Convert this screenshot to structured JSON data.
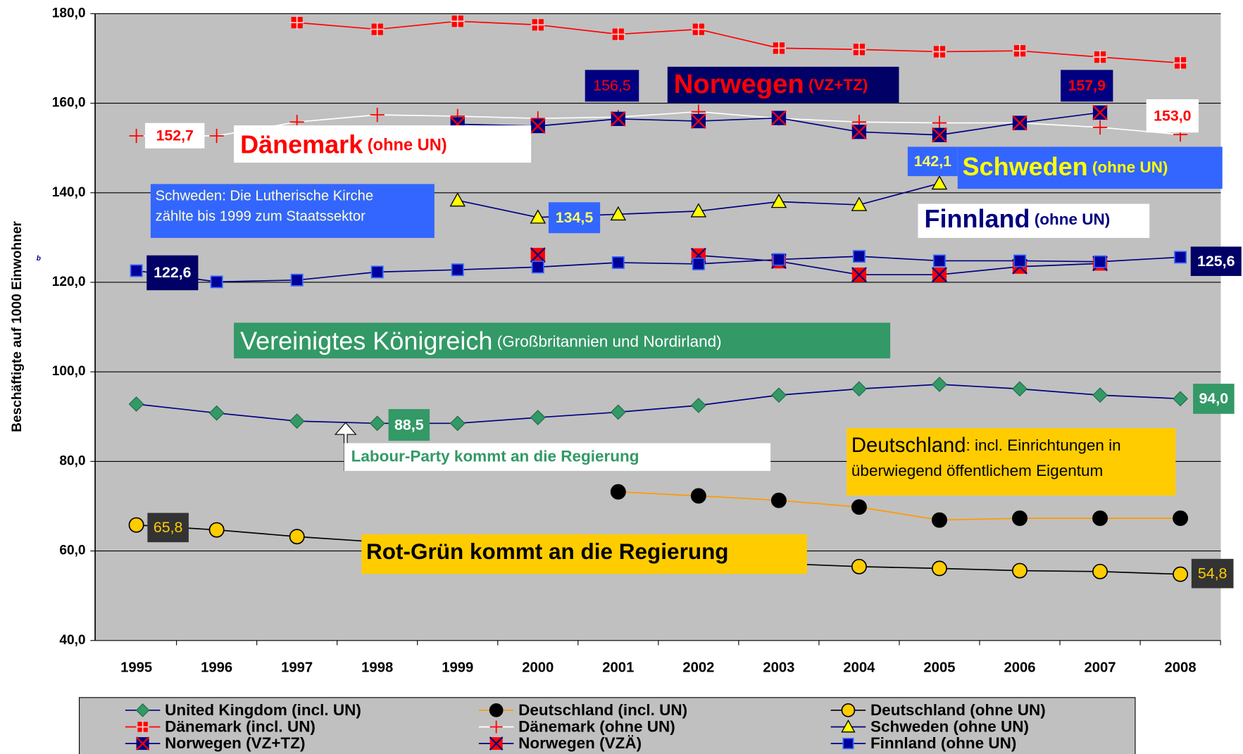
{
  "chart_data": {
    "type": "line",
    "y_axis_label": "Beschäftigte auf 1000 Einwohner",
    "categories": [
      "1995",
      "1996",
      "1997",
      "1998",
      "1999",
      "2000",
      "2001",
      "2002",
      "2003",
      "2004",
      "2005",
      "2006",
      "2007",
      "2008"
    ],
    "ylim": [
      40,
      180
    ],
    "yticks": [
      {
        "value": 40,
        "label": "40,0"
      },
      {
        "value": 60,
        "label": "60,0"
      },
      {
        "value": 80,
        "label": "80,0"
      },
      {
        "value": 100,
        "label": "100,0"
      },
      {
        "value": 120,
        "label": "120,0"
      },
      {
        "value": 140,
        "label": "140,0"
      },
      {
        "value": 160,
        "label": "160,0"
      },
      {
        "value": 180,
        "label": "180,0"
      }
    ],
    "grid": true,
    "plot_background": "#c0c0c0",
    "series": [
      {
        "name": "United Kingdom (incl. UN)",
        "color": "#000080",
        "marker": "diamond",
        "marker_fill": "#339966",
        "marker_stroke": "#1f6b45",
        "values": [
          92.8,
          90.8,
          89.0,
          88.5,
          88.5,
          89.8,
          91.0,
          92.5,
          94.8,
          96.2,
          97.2,
          96.2,
          94.8,
          94.0
        ],
        "value_labels": [
          null,
          null,
          null,
          "88,5",
          null,
          null,
          null,
          null,
          null,
          null,
          null,
          null,
          null,
          "94,0"
        ],
        "label_fill": "#339966",
        "label_color": "#ffffff"
      },
      {
        "name": "Deutschland (incl. UN)",
        "color": "#ff9900",
        "marker": "circle",
        "marker_fill": "#000000",
        "marker_stroke": "#000000",
        "values": [
          null,
          null,
          null,
          null,
          null,
          null,
          73.2,
          72.3,
          71.3,
          69.8,
          66.9,
          67.3,
          67.3,
          67.3
        ]
      },
      {
        "name": "Deutschland (ohne UN)",
        "color": "#000000",
        "marker": "circle",
        "marker_fill": "#ffcc00",
        "marker_stroke": "#000000",
        "values": [
          65.8,
          64.7,
          63.2,
          62.0,
          60.5,
          59.5,
          58.5,
          57.8,
          57.2,
          56.5,
          56.1,
          55.6,
          55.4,
          54.8
        ],
        "value_labels": [
          "65,8",
          null,
          null,
          null,
          null,
          null,
          null,
          null,
          null,
          null,
          null,
          null,
          null,
          "54,8"
        ],
        "label_fill": "#333333",
        "label_color": "#ffcc00"
      },
      {
        "name": "Dänemark (incl. UN)",
        "color": "#ff0000",
        "marker": "squareplus",
        "marker_fill": "#ff0000",
        "marker_stroke": "#ffcccc",
        "values": [
          null,
          null,
          178.0,
          176.5,
          178.3,
          177.5,
          175.4,
          176.5,
          172.3,
          172.0,
          171.5,
          171.7,
          170.3,
          169.0
        ]
      },
      {
        "name": "Dänemark (ohne UN)",
        "color": "#ffffff",
        "marker": "plus",
        "marker_fill": "#ffffff",
        "marker_stroke": "#ff0000",
        "values": [
          152.7,
          152.7,
          155.8,
          157.4,
          157.1,
          156.6,
          156.9,
          158.1,
          156.6,
          155.8,
          155.6,
          155.6,
          154.6,
          153.0
        ],
        "value_labels": [
          "152,7",
          null,
          null,
          null,
          null,
          null,
          null,
          null,
          null,
          null,
          null,
          null,
          null,
          "153,0"
        ],
        "label_fill": "#ffffff",
        "label_color": "#ff0000"
      },
      {
        "name": "Schweden (ohne UN)",
        "color": "#000080",
        "marker": "triangle",
        "marker_fill": "#ffff00",
        "marker_stroke": "#000000",
        "values": [
          null,
          null,
          null,
          null,
          138.3,
          134.5,
          135.2,
          135.9,
          138.0,
          137.3,
          142.1,
          null,
          null,
          null
        ],
        "value_labels": [
          null,
          null,
          null,
          null,
          null,
          "134,5",
          null,
          null,
          null,
          null,
          "142,1",
          null,
          null,
          null
        ],
        "label_fill": "#3366ff",
        "label_color": "#ffff66"
      },
      {
        "name": "Norwegen (VZ+TZ)",
        "color": "#000080",
        "marker": "squarex",
        "marker_fill": "#000080",
        "marker_stroke": "#ff0000",
        "values": [
          null,
          null,
          null,
          null,
          155.3,
          154.9,
          156.5,
          156.0,
          156.7,
          153.6,
          152.9,
          155.6,
          157.9,
          null
        ],
        "value_labels": [
          null,
          null,
          null,
          null,
          null,
          null,
          "156,5",
          null,
          null,
          null,
          null,
          null,
          "157,9",
          null
        ],
        "label_fill": "#000080",
        "label_color": "#ff0000"
      },
      {
        "name": "Norwegen (VZÄ)",
        "color": "#000080",
        "marker": "squarex",
        "marker_fill": "#ff0000",
        "marker_stroke": "#000080",
        "values": [
          null,
          null,
          null,
          null,
          null,
          126.1,
          null,
          126.0,
          124.7,
          121.7,
          121.7,
          123.5,
          124.2,
          null
        ]
      },
      {
        "name": "Finnland (ohne UN)",
        "color": "#000080",
        "marker": "square",
        "marker_fill": "#000099",
        "marker_stroke": "#3366ff",
        "values": [
          122.6,
          120.1,
          120.5,
          122.3,
          122.8,
          123.4,
          124.4,
          124.1,
          125.1,
          125.8,
          124.8,
          124.8,
          124.6,
          125.6
        ],
        "value_labels": [
          "122,6",
          null,
          null,
          null,
          null,
          null,
          null,
          null,
          null,
          null,
          null,
          null,
          null,
          "125,6"
        ],
        "label_fill": "#000066",
        "label_color": "#ffffff"
      }
    ],
    "annotations": [
      {
        "lines": [
          [
            "Dänemark",
            " (ohne UN)"
          ]
        ],
        "fill": "#ffffff",
        "color": "#ff0000"
      },
      {
        "lines": [
          [
            "Norwegen",
            " (VZ+TZ)"
          ]
        ],
        "fill": "#000066",
        "color": "#ff0000"
      },
      {
        "lines": [
          [
            "Schweden",
            " (ohne UN)"
          ]
        ],
        "fill": "#3366ff",
        "color": "#ffff00"
      },
      {
        "lines": [
          [
            "Schweden: Die Lutherische Kirche"
          ],
          [
            "zählte bis 1999 zum Staatssektor"
          ]
        ],
        "fill": "#3366ff",
        "color": "#ffffcc"
      },
      {
        "lines": [
          [
            "Finnland",
            " (ohne UN)"
          ]
        ],
        "fill": "#ffffff",
        "color": "#000080"
      },
      {
        "lines": [
          [
            "Vereinigtes Königreich",
            " (Großbritannien und Nordirland)"
          ]
        ],
        "fill": "#339966",
        "color": "#ffffff"
      },
      {
        "lines": [
          [
            "Labour-Party kommt an die Regierung"
          ]
        ],
        "fill": "#ffffff",
        "color": "#339966"
      },
      {
        "lines": [
          [
            "Deutschland",
            ": incl. Einrichtungen in"
          ],
          [
            "überwiegend öffentlichem Eigentum"
          ]
        ],
        "fill": "#ffcc00",
        "color": "#000000"
      },
      {
        "lines": [
          [
            "Rot-Grün kommt an die Regierung"
          ]
        ],
        "fill": "#ffcc00",
        "color": "#000000"
      },
      {
        "lines": [
          [
            "b"
          ]
        ],
        "fill": null,
        "color": "#000080"
      }
    ]
  }
}
